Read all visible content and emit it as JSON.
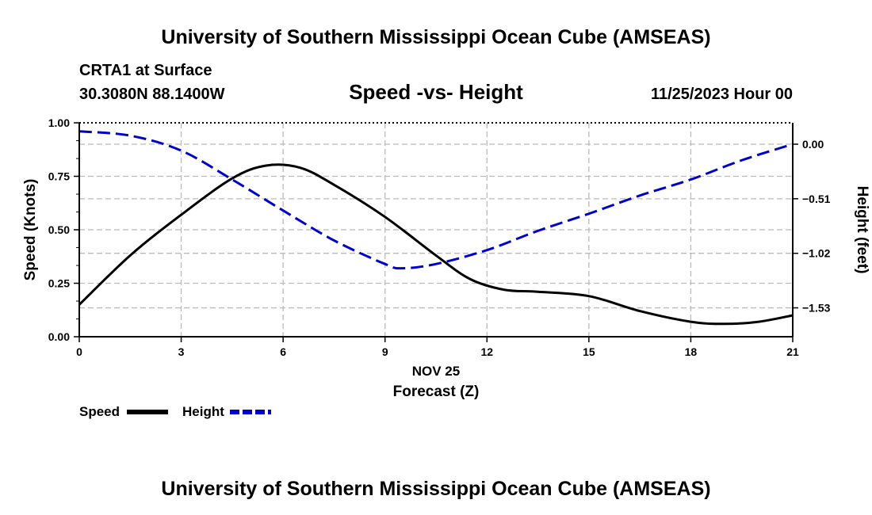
{
  "header": {
    "title": "University of Southern Mississippi Ocean Cube (AMSEAS)",
    "station": "CRTA1 at Surface",
    "coords": "30.3080N  88.1400W",
    "chart_title": "Speed -vs- Height",
    "datetime": "11/25/2023 Hour 00"
  },
  "footer": {
    "title": "University of Southern Mississippi Ocean Cube (AMSEAS)"
  },
  "colors": {
    "speed": "#000000",
    "height": "#0000cc",
    "grid": "#bbbbbb"
  },
  "chart_data": {
    "type": "line",
    "title": "Speed -vs- Height",
    "xlabel": "Forecast (Z)",
    "xlabel_date": "NOV 25",
    "ylabel": "Speed (Knots)",
    "y2label": "Height (feet)",
    "xlim": [
      0,
      21
    ],
    "ylim": [
      0,
      1
    ],
    "y2lim": [
      -1.8,
      0.2
    ],
    "xticks": [
      0,
      3,
      6,
      9,
      12,
      15,
      18,
      21
    ],
    "xtick_labels": [
      "0",
      "3",
      "6",
      "9",
      "12",
      "15",
      "18",
      "21"
    ],
    "yticks": [
      0,
      0.25,
      0.5,
      0.75,
      1.0
    ],
    "ytick_labels": [
      "0.00",
      "0.25",
      "0.50",
      "0.75",
      "1.00"
    ],
    "y2ticks": [
      0.0,
      -0.51,
      -1.02,
      -1.53
    ],
    "y2tick_labels": [
      "0.00",
      "−0.51",
      "−1.02",
      "−1.53"
    ],
    "grid": true,
    "legend": [
      {
        "name": "Speed",
        "style": "solid"
      },
      {
        "name": "Height",
        "style": "dashed"
      }
    ],
    "series": [
      {
        "name": "Speed",
        "axis": "left",
        "x": [
          0,
          1.5,
          3,
          4.5,
          5.5,
          6.5,
          7.5,
          9,
          10.5,
          11.5,
          12.5,
          13.5,
          15,
          16.5,
          18,
          19,
          20,
          21
        ],
        "values": [
          0.15,
          0.38,
          0.57,
          0.74,
          0.8,
          0.79,
          0.71,
          0.56,
          0.38,
          0.27,
          0.22,
          0.21,
          0.19,
          0.12,
          0.07,
          0.06,
          0.07,
          0.1
        ]
      },
      {
        "name": "Height",
        "axis": "right",
        "x": [
          0,
          1.5,
          3,
          4.5,
          6,
          7.5,
          9,
          9.5,
          10.5,
          12,
          13.5,
          15,
          16.5,
          18,
          19.5,
          21
        ],
        "values": [
          0.12,
          0.08,
          -0.06,
          -0.33,
          -0.62,
          -0.9,
          -1.12,
          -1.16,
          -1.12,
          -0.99,
          -0.81,
          -0.65,
          -0.48,
          -0.33,
          -0.15,
          0.0
        ]
      }
    ]
  }
}
